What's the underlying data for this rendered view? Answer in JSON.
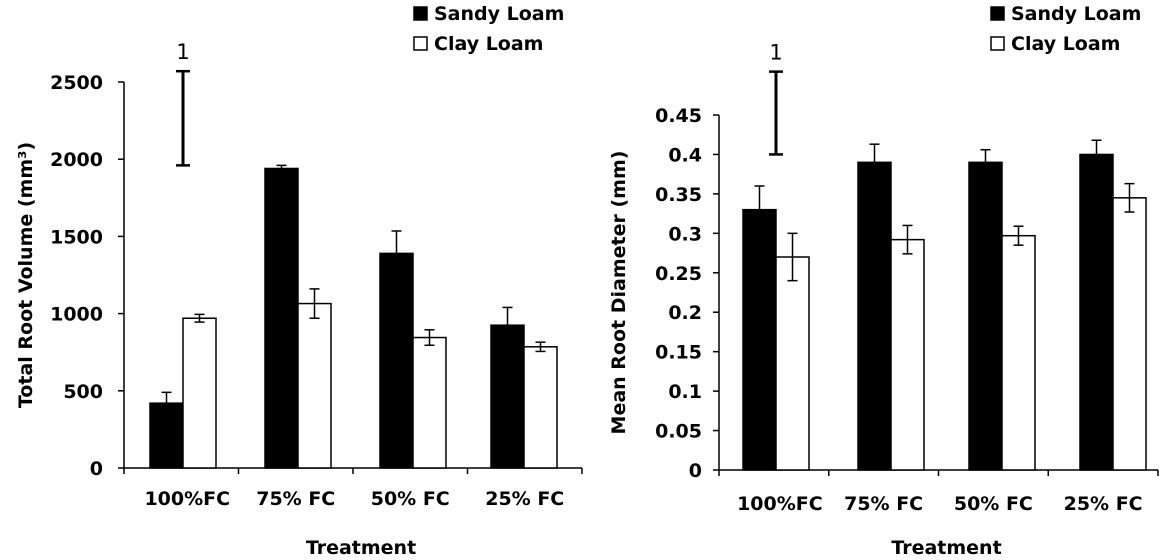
{
  "chart_data": [
    {
      "type": "bar",
      "categories": [
        "100%FC",
        "75% FC",
        "50% FC",
        "25% FC"
      ],
      "series": [
        {
          "name": "Sandy Loam",
          "values": [
            420,
            1940,
            1390,
            925
          ],
          "errors": [
            70,
            20,
            145,
            115
          ]
        },
        {
          "name": "Clay Loam",
          "values": [
            970,
            1065,
            845,
            785
          ],
          "errors": [
            25,
            95,
            50,
            30
          ]
        }
      ],
      "xlabel": "Treatment",
      "ylabel": "Total Root Volume (mm³)",
      "ylim": [
        0,
        2500
      ],
      "yticks": [
        "0",
        "500",
        "1000",
        "1500",
        "2000",
        "2500"
      ],
      "lsd": {
        "label": "1",
        "low": 1960,
        "high": 2570
      },
      "legend": "top-right",
      "colors": {
        "Sandy Loam": "#000000",
        "Clay Loam": "#ffffff"
      }
    },
    {
      "type": "bar",
      "categories": [
        "100%FC",
        "75% FC",
        "50% FC",
        "25% FC"
      ],
      "series": [
        {
          "name": "Sandy Loam",
          "values": [
            0.33,
            0.39,
            0.39,
            0.4
          ],
          "errors": [
            0.03,
            0.023,
            0.016,
            0.018
          ]
        },
        {
          "name": "Clay Loam",
          "values": [
            0.27,
            0.292,
            0.297,
            0.345
          ],
          "errors": [
            0.03,
            0.018,
            0.012,
            0.018
          ]
        }
      ],
      "xlabel": "Treatment",
      "ylabel": "Mean Root Diameter (mm)",
      "ylim": [
        0,
        0.45
      ],
      "yticks": [
        "0",
        "0.05",
        "0.1",
        "0.15",
        "0.2",
        "0.25",
        "0.3",
        "0.35",
        "0.4",
        "0.45"
      ],
      "lsd": {
        "label": "1",
        "low": 0.4,
        "high": 0.505
      },
      "legend": "top-right",
      "colors": {
        "Sandy Loam": "#000000",
        "Clay Loam": "#ffffff"
      }
    }
  ]
}
